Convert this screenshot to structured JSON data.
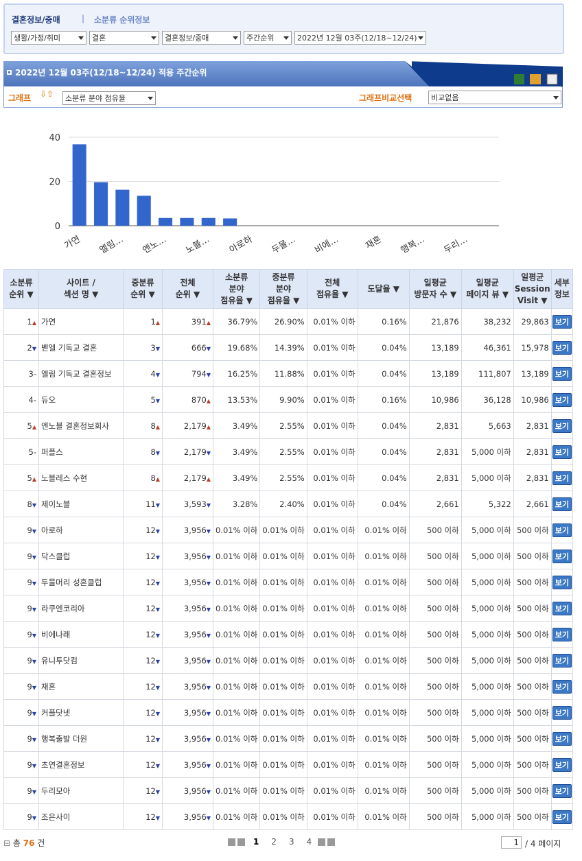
{
  "header": {
    "breadcrumb": "결혼정보/중매",
    "separator": "|",
    "subtitle": "소분류 순위정보",
    "selects": [
      "생활/가정/취미",
      "결혼",
      "결혼정보/중매",
      "주간순위",
      "2022년 12월 03주(12/18~12/24)"
    ]
  },
  "panel": {
    "title": "2022년 12월 03주(12/18~12/24) 적용 주간순위",
    "graph_label": "그래프",
    "graph_select": "소분류 분야 점유율",
    "compare_label": "그래프비교선택",
    "compare_select": "비교없음"
  },
  "chart_data": {
    "type": "bar",
    "categories": [
      "가연",
      null,
      "엘림…",
      null,
      "엔노…",
      null,
      "노블…",
      null,
      "아로하",
      null,
      "두물…",
      null,
      "비에…",
      null,
      "재혼",
      null,
      "행복…",
      null,
      "두리…",
      null
    ],
    "values": [
      36.79,
      19.68,
      16.25,
      13.53,
      3.49,
      3.49,
      3.49,
      3.28,
      0,
      0,
      0,
      0,
      0,
      0,
      0,
      0,
      0,
      0,
      0,
      0
    ],
    "color": "#3366cc",
    "ylim": [
      0,
      40
    ],
    "yticks": [
      0,
      20,
      40
    ],
    "grid": true
  },
  "table": {
    "columns": [
      "소분류\n순위 ▼",
      "사이트 /\n섹션 명 ▼",
      "중분류\n순위 ▼",
      "전체\n순위 ▼",
      "소분류\n분야\n점유율 ▼",
      "중분류\n분야\n점유율 ▼",
      "전체\n점유율 ▼",
      "도달율 ▼",
      "일평균\n방문자 수 ▼",
      "일평균\n페이지 뷰 ▼",
      "일평균\nSession\nVisit ▼",
      "세부\n정보"
    ],
    "button": "보기",
    "rows": [
      [
        "1",
        "▲",
        "가연",
        "1",
        "▲",
        "391",
        "▲",
        "36.79%",
        "26.90%",
        "0.01% 이하",
        "0.16%",
        "21,876",
        "38,232",
        "29,863"
      ],
      [
        "2",
        "▼",
        "벧엘 기독교 결혼",
        "3",
        "▼",
        "666",
        "▼",
        "19.68%",
        "14.39%",
        "0.01% 이하",
        "0.04%",
        "13,189",
        "46,361",
        "15,978"
      ],
      [
        "3",
        "-",
        "엘림 기독교 결혼정보",
        "4",
        "▼",
        "794",
        "▼",
        "16.25%",
        "11.88%",
        "0.01% 이하",
        "0.04%",
        "13,189",
        "111,807",
        "13,189"
      ],
      [
        "4",
        "-",
        "듀오",
        "5",
        "▼",
        "870",
        "▲",
        "13.53%",
        "9.90%",
        "0.01% 이하",
        "0.16%",
        "10,986",
        "36,128",
        "10,986"
      ],
      [
        "5",
        "▲",
        "엔노블 결혼정보회사",
        "8",
        "▲",
        "2,179",
        "▲",
        "3.49%",
        "2.55%",
        "0.01% 이하",
        "0.04%",
        "2,831",
        "5,663",
        "2,831"
      ],
      [
        "5",
        "-",
        "퍼플스",
        "8",
        "▼",
        "2,179",
        "▼",
        "3.49%",
        "2.55%",
        "0.01% 이하",
        "0.04%",
        "2,831",
        "5,000 이하",
        "2,831"
      ],
      [
        "5",
        "▲",
        "노블레스 수현",
        "8",
        "▲",
        "2,179",
        "▲",
        "3.49%",
        "2.55%",
        "0.01% 이하",
        "0.04%",
        "2,831",
        "5,000 이하",
        "2,831"
      ],
      [
        "8",
        "▼",
        "제이노블",
        "11",
        "▼",
        "3,593",
        "▼",
        "3.28%",
        "2.40%",
        "0.01% 이하",
        "0.04%",
        "2,661",
        "5,322",
        "2,661"
      ],
      [
        "9",
        "▼",
        "아로하",
        "12",
        "▼",
        "3,956",
        "▼",
        "0.01% 이하",
        "0.01% 이하",
        "0.01% 이하",
        "0.01% 이하",
        "500 이하",
        "5,000 이하",
        "500 이하"
      ],
      [
        "9",
        "▼",
        "닥스클럽",
        "12",
        "▼",
        "3,956",
        "▼",
        "0.01% 이하",
        "0.01% 이하",
        "0.01% 이하",
        "0.01% 이하",
        "500 이하",
        "5,000 이하",
        "500 이하"
      ],
      [
        "9",
        "▼",
        "두물머리 성혼클럽",
        "12",
        "▼",
        "3,956",
        "▼",
        "0.01% 이하",
        "0.01% 이하",
        "0.01% 이하",
        "0.01% 이하",
        "500 이하",
        "5,000 이하",
        "500 이하"
      ],
      [
        "9",
        "▼",
        "라쿠엔코리아",
        "12",
        "▼",
        "3,956",
        "▼",
        "0.01% 이하",
        "0.01% 이하",
        "0.01% 이하",
        "0.01% 이하",
        "500 이하",
        "5,000 이하",
        "500 이하"
      ],
      [
        "9",
        "▼",
        "비에나래",
        "12",
        "▼",
        "3,956",
        "▼",
        "0.01% 이하",
        "0.01% 이하",
        "0.01% 이하",
        "0.01% 이하",
        "500 이하",
        "5,000 이하",
        "500 이하"
      ],
      [
        "9",
        "▼",
        "유니투닷컴",
        "12",
        "▼",
        "3,956",
        "▼",
        "0.01% 이하",
        "0.01% 이하",
        "0.01% 이하",
        "0.01% 이하",
        "500 이하",
        "5,000 이하",
        "500 이하"
      ],
      [
        "9",
        "▼",
        "재혼",
        "12",
        "▼",
        "3,956",
        "▼",
        "0.01% 이하",
        "0.01% 이하",
        "0.01% 이하",
        "0.01% 이하",
        "500 이하",
        "5,000 이하",
        "500 이하"
      ],
      [
        "9",
        "▼",
        "커플닷넷",
        "12",
        "▼",
        "3,956",
        "▼",
        "0.01% 이하",
        "0.01% 이하",
        "0.01% 이하",
        "0.01% 이하",
        "500 이하",
        "5,000 이하",
        "500 이하"
      ],
      [
        "9",
        "▼",
        "행복출발 더원",
        "12",
        "▼",
        "3,956",
        "▼",
        "0.01% 이하",
        "0.01% 이하",
        "0.01% 이하",
        "0.01% 이하",
        "500 이하",
        "5,000 이하",
        "500 이하"
      ],
      [
        "9",
        "▼",
        "초연결혼정보",
        "12",
        "▼",
        "3,956",
        "▼",
        "0.01% 이하",
        "0.01% 이하",
        "0.01% 이하",
        "0.01% 이하",
        "500 이하",
        "5,000 이하",
        "500 이하"
      ],
      [
        "9",
        "▼",
        "두리모아",
        "12",
        "▼",
        "3,956",
        "▼",
        "0.01% 이하",
        "0.01% 이하",
        "0.01% 이하",
        "0.01% 이하",
        "500 이하",
        "5,000 이하",
        "500 이하"
      ],
      [
        "9",
        "▼",
        "조은사이",
        "12",
        "▼",
        "3,956",
        "▼",
        "0.01% 이하",
        "0.01% 이하",
        "0.01% 이하",
        "0.01% 이하",
        "500 이하",
        "5,000 이하",
        "500 이하"
      ]
    ]
  },
  "footer": {
    "total_prefix": "총",
    "total": "76",
    "total_suffix": "건",
    "pages": [
      "1",
      "2",
      "3",
      "4"
    ],
    "page_input": "1",
    "page_total": "/ 4 페이지"
  }
}
